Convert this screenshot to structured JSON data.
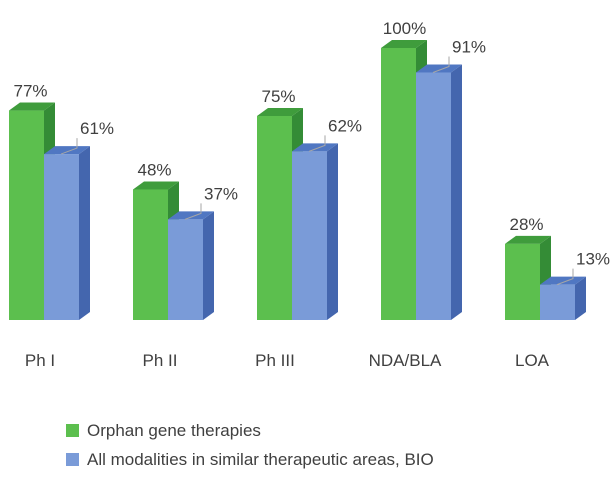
{
  "chart_data": {
    "type": "bar",
    "categories": [
      "Ph I",
      "Ph II",
      "Ph III",
      "NDA/BLA",
      "LOA"
    ],
    "series": [
      {
        "name": "Orphan gene therapies",
        "values": [
          77,
          48,
          75,
          100,
          28
        ],
        "labels": [
          "77%",
          "48%",
          "75%",
          "100%",
          "28%"
        ],
        "color": "#5cbf4e",
        "side_color": "#348c36",
        "top_color": "#3f9c3c"
      },
      {
        "name": "All modalities in similar therapeutic areas, BIO",
        "values": [
          61,
          37,
          62,
          91,
          13
        ],
        "labels": [
          "61%",
          "37%",
          "62%",
          "91%",
          "13%"
        ],
        "color": "#7a9bd8",
        "side_color": "#4466ae",
        "top_color": "#5077c2"
      }
    ],
    "ylim": [
      0,
      100
    ],
    "grid": false,
    "legend_position": "bottom-left",
    "style": "3d-clustered"
  }
}
